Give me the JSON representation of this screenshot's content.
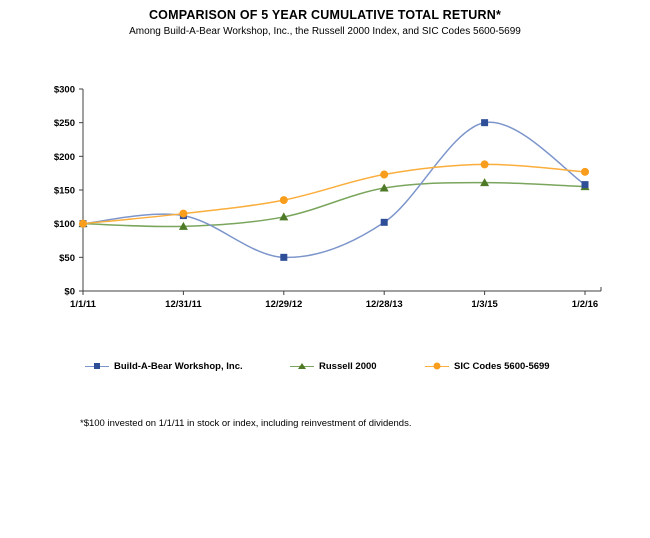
{
  "title": "COMPARISON OF 5 YEAR CUMULATIVE TOTAL RETURN*",
  "subtitle": "Among Build-A-Bear Workshop, Inc., the Russell 2000 Index, and SIC Codes 5600-5699",
  "footnote": "*$100 invested on 1/1/11 in stock or index, including reinvestment of dividends.",
  "chart_data": {
    "type": "line",
    "smoothed": true,
    "grid": false,
    "legend_position": "bottom",
    "categories": [
      "1/1/11",
      "12/31/11",
      "12/29/12",
      "12/28/13",
      "1/3/15",
      "1/2/16"
    ],
    "series": [
      {
        "name": "Build-A-Bear Workshop, Inc.",
        "values": [
          100,
          112,
          50,
          102,
          250,
          158
        ],
        "marker": "square",
        "line_color": "#7C95CB",
        "marker_color": "#2E4E97"
      },
      {
        "name": "Russell 2000",
        "values": [
          100,
          96,
          110,
          153,
          161,
          155
        ],
        "marker": "triangle",
        "line_color": "#7AA55C",
        "marker_color": "#4E7A28"
      },
      {
        "name": "SIC Codes 5600-5699",
        "values": [
          100,
          115,
          135,
          173,
          188,
          177
        ],
        "marker": "circle",
        "line_color": "#FBAE3C",
        "marker_color": "#F89D1C"
      }
    ],
    "ylim": [
      0,
      300
    ],
    "ytick_step": 50,
    "ytick_labels": [
      "$0",
      "$50",
      "$100",
      "$150",
      "$200",
      "$250",
      "$300"
    ],
    "xlabel": "",
    "ylabel": "",
    "axis_color": "#404040"
  }
}
